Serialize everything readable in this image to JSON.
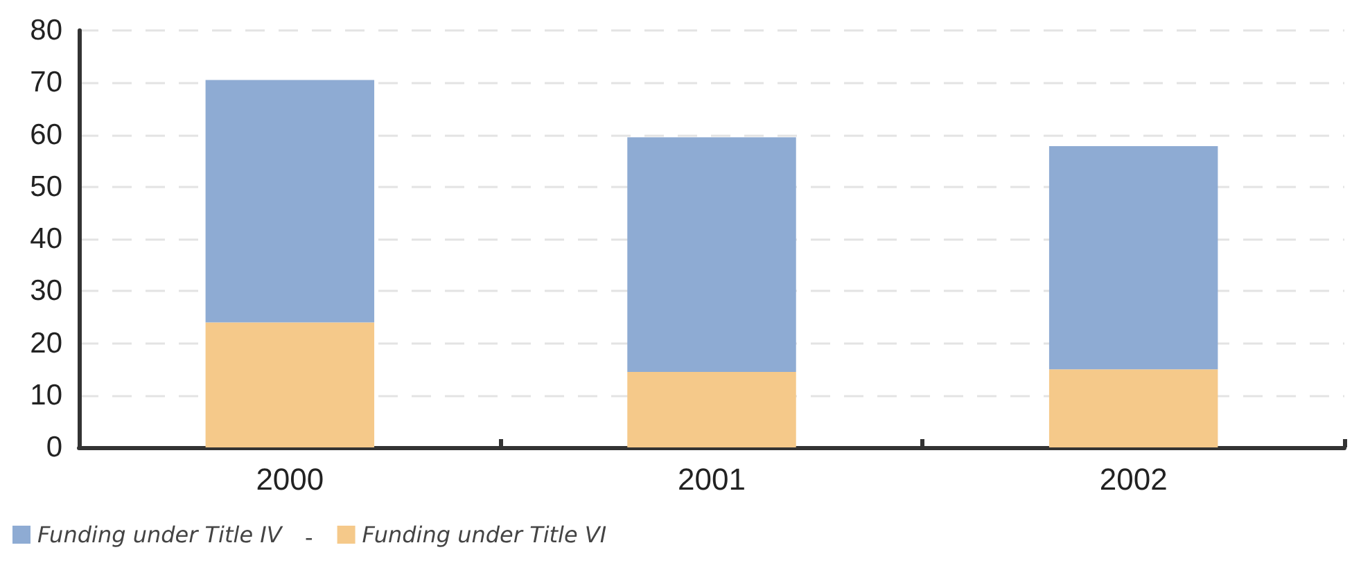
{
  "chart_data": {
    "type": "bar",
    "stacked": true,
    "categories": [
      "2000",
      "2001",
      "2002"
    ],
    "series": [
      {
        "name": "Funding under Title VI",
        "color": "#f5c98a",
        "values": [
          24,
          14.5,
          15
        ]
      },
      {
        "name": "Funding under Title IV",
        "color": "#8eabd3",
        "values": [
          46.5,
          45,
          42.8
        ]
      }
    ],
    "ylim": [
      0,
      80
    ],
    "yticks": [
      0,
      10,
      20,
      30,
      40,
      50,
      60,
      70,
      80
    ],
    "grid": "y",
    "legend": "bottom left",
    "annotations": [
      "-"
    ]
  }
}
